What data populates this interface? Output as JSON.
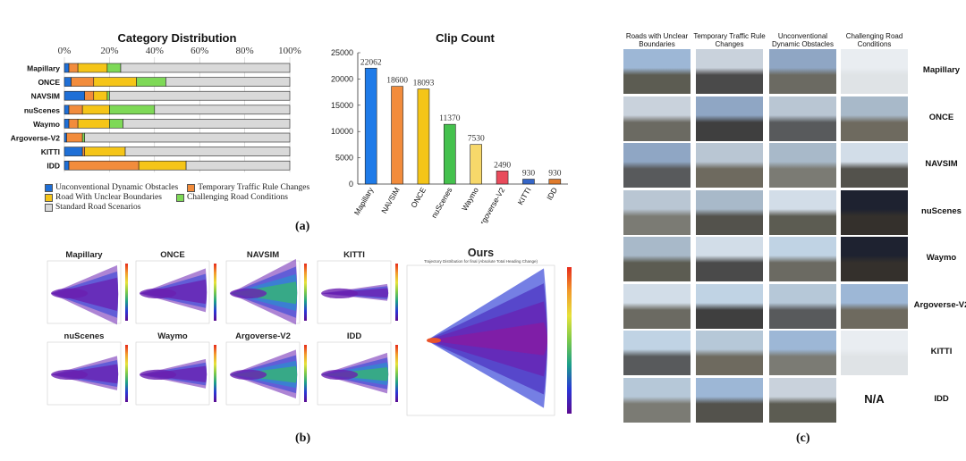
{
  "chart_data": [
    {
      "type": "bar",
      "orientation": "horizontal",
      "stacked": true,
      "title": "Category Distribution",
      "xticks": [
        "0%",
        "20%",
        "40%",
        "60%",
        "80%",
        "100%"
      ],
      "xlim": [
        0,
        100
      ],
      "categories": [
        "Mapillary",
        "ONCE",
        "NAVSIM",
        "nuScenes",
        "Waymo",
        "Argoverse-V2",
        "KITTI",
        "IDD"
      ],
      "series": [
        {
          "name": "Unconventional Dynamic Obstacles",
          "color": "#1f6fd6",
          "values": [
            2,
            3,
            9,
            2,
            2,
            1,
            8,
            2
          ]
        },
        {
          "name": "Temporary Traffic Rule Changes",
          "color": "#f28c3c",
          "values": [
            4,
            10,
            4,
            6,
            4,
            7,
            1,
            31
          ]
        },
        {
          "name": "Road With Unclear Boundaries",
          "color": "#f5c518",
          "values": [
            13,
            19,
            6,
            12,
            14,
            0,
            18,
            21
          ]
        },
        {
          "name": "Challenging Road Conditions",
          "color": "#7ed957",
          "values": [
            6,
            13,
            1,
            20,
            6,
            1,
            0,
            0
          ]
        },
        {
          "name": "Standard Road Scenarios",
          "color": "#d9d9d9",
          "values": [
            75,
            55,
            80,
            60,
            74,
            91,
            73,
            46
          ]
        }
      ]
    },
    {
      "type": "bar",
      "title": "Clip Count",
      "categories": [
        "Mapillary",
        "NAVSIM",
        "ONCE",
        "nuScenes",
        "Waymo",
        "Argoverse-V2",
        "KITTI",
        "IDD"
      ],
      "values": [
        22062,
        18600,
        18093,
        11370,
        7530,
        2490,
        930,
        930
      ],
      "value_labels": [
        "22062",
        "18600",
        "18093",
        "11370",
        "7530",
        "2490",
        "930",
        "930"
      ],
      "colors": [
        "#1f7be8",
        "#f28c3c",
        "#f5c518",
        "#44c14d",
        "#f7d86a",
        "#e94b5b",
        "#3566c8",
        "#e07b2c"
      ],
      "ylim": [
        0,
        25000
      ],
      "yticks": [
        "0",
        "5000",
        "10000",
        "15000",
        "20000",
        "25000"
      ]
    },
    {
      "type": "line",
      "subtitle": "Trajectory Distribution for final (Absolute Total Heading Change)",
      "panels": [
        "Mapillary",
        "ONCE",
        "NAVSIM",
        "KITTI",
        "nuScenes",
        "Waymo",
        "Argoverse-V2",
        "IDD",
        "Ours"
      ]
    }
  ],
  "panel_labels": [
    "(a)",
    "(b)",
    "(c)"
  ],
  "grid_c": {
    "columns": [
      "Roads with Unclear Boundaries",
      "Temporary Traffic Rule Changes",
      "Unconventional Dynamic Obstacles",
      "Challenging Road Conditions"
    ],
    "rows": [
      "Mapillary",
      "ONCE",
      "NAVSIM",
      "nuScenes",
      "Waymo",
      "Argoverse-V2",
      "KITTI",
      "IDD"
    ],
    "na_label": "N/A"
  }
}
